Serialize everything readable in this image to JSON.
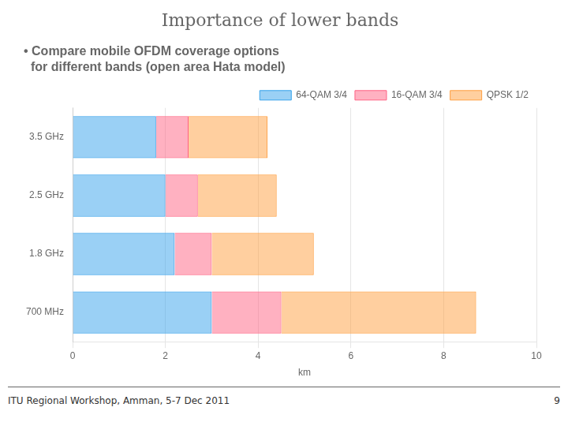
{
  "chart_data": {
    "type": "bar",
    "orientation": "horizontal",
    "stacked": true,
    "title": "Importance of lower bands",
    "subtitle": [
      "• Compare mobile OFDM coverage options",
      "  for different bands (open area Hata model)"
    ],
    "annotations": [
      "ITU Regional Workshop, Amman, 5-7 Dec 2011",
      "9"
    ],
    "categories": [
      "3.5 GHz",
      "2.5 GHz",
      "1.8 GHz",
      "700 MHz"
    ],
    "series": [
      {
        "name": "64-QAM 3/4",
        "values": [
          1.8,
          2.0,
          2.2,
          3.0
        ]
      },
      {
        "name": "16-QAM 3/4",
        "values": [
          0.7,
          0.7,
          0.8,
          1.5
        ]
      },
      {
        "name": "QPSK 1/2",
        "values": [
          1.7,
          1.7,
          2.2,
          4.2
        ]
      }
    ],
    "xlabel": "km",
    "xlim": [
      0,
      10
    ],
    "xticks": [
      0,
      2,
      4,
      6,
      8,
      10
    ],
    "grid": true,
    "legend": "upper right"
  }
}
